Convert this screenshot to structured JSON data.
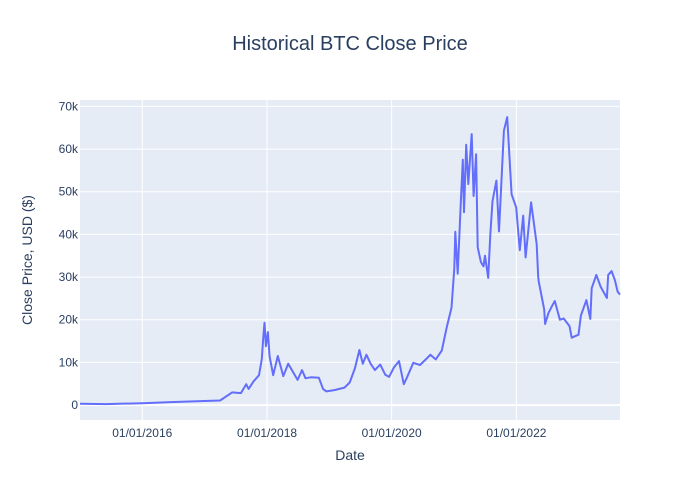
{
  "chart_data": {
    "type": "line",
    "title": "Historical BTC Close Price",
    "xlabel": "Date",
    "ylabel": "Close Price, USD ($)",
    "x_axis": {
      "type": "date",
      "range": [
        "2015-01-01",
        "2023-08-31"
      ],
      "ticks": [
        {
          "value": "2016-01-01",
          "label": "01/01/2016"
        },
        {
          "value": "2018-01-01",
          "label": "01/01/2018"
        },
        {
          "value": "2020-01-01",
          "label": "01/01/2020"
        },
        {
          "value": "2022-01-01",
          "label": "01/01/2022"
        }
      ]
    },
    "y_axis": {
      "range": [
        -3500,
        71500
      ],
      "ticks": [
        {
          "value": 0,
          "label": "0"
        },
        {
          "value": 10000,
          "label": "10k"
        },
        {
          "value": 20000,
          "label": "20k"
        },
        {
          "value": 30000,
          "label": "30k"
        },
        {
          "value": 40000,
          "label": "40k"
        },
        {
          "value": 50000,
          "label": "50k"
        },
        {
          "value": 60000,
          "label": "60k"
        },
        {
          "value": 70000,
          "label": "70k"
        }
      ]
    },
    "grid": true,
    "legend": false,
    "colors": {
      "line": "#636efa",
      "plot_background": "#e5ecf6",
      "grid": "#ffffff",
      "text": "#2a3f5f"
    },
    "series": [
      {
        "x": [
          "2015-01-01",
          "2015-06-01",
          "2016-01-01",
          "2016-06-15",
          "2016-12-31",
          "2017-04-01",
          "2017-06-10",
          "2017-08-01",
          "2017-09-01",
          "2017-09-15",
          "2017-10-15",
          "2017-11-15",
          "2017-12-01",
          "2017-12-10",
          "2017-12-17",
          "2017-12-25",
          "2018-01-06",
          "2018-01-16",
          "2018-02-06",
          "2018-03-05",
          "2018-04-06",
          "2018-05-05",
          "2018-06-29",
          "2018-07-25",
          "2018-08-14",
          "2018-09-15",
          "2018-11-01",
          "2018-11-25",
          "2018-12-15",
          "2019-01-30",
          "2019-03-31",
          "2019-04-30",
          "2019-05-31",
          "2019-06-26",
          "2019-07-16",
          "2019-08-06",
          "2019-09-01",
          "2019-09-25",
          "2019-10-26",
          "2019-11-25",
          "2019-12-17",
          "2020-01-14",
          "2020-02-13",
          "2020-03-12",
          "2020-03-30",
          "2020-05-07",
          "2020-06-15",
          "2020-07-27",
          "2020-08-15",
          "2020-09-15",
          "2020-10-21",
          "2020-11-20",
          "2020-12-17",
          "2021-01-02",
          "2021-01-08",
          "2021-01-22",
          "2021-02-08",
          "2021-02-21",
          "2021-02-28",
          "2021-03-13",
          "2021-03-25",
          "2021-04-14",
          "2021-04-25",
          "2021-05-10",
          "2021-05-19",
          "2021-06-07",
          "2021-06-22",
          "2021-07-01",
          "2021-07-20",
          "2021-08-01",
          "2021-08-14",
          "2021-09-06",
          "2021-09-21",
          "2021-10-20",
          "2021-11-08",
          "2021-11-26",
          "2021-12-04",
          "2021-12-31",
          "2022-01-21",
          "2022-02-10",
          "2022-02-24",
          "2022-03-28",
          "2022-04-30",
          "2022-05-09",
          "2022-05-12",
          "2022-06-13",
          "2022-06-18",
          "2022-07-08",
          "2022-07-30",
          "2022-08-14",
          "2022-09-13",
          "2022-10-05",
          "2022-11-08",
          "2022-11-21",
          "2022-12-31",
          "2023-01-14",
          "2023-02-15",
          "2023-03-10",
          "2023-03-18",
          "2023-04-14",
          "2023-05-10",
          "2023-06-15",
          "2023-06-23",
          "2023-07-13",
          "2023-08-01",
          "2023-08-17",
          "2023-08-31"
        ],
        "y": [
          315,
          225,
          430,
          700,
          960,
          1070,
          2970,
          2800,
          4900,
          3800,
          5600,
          7000,
          10800,
          16000,
          19300,
          13800,
          17100,
          11400,
          7000,
          11500,
          6800,
          9700,
          5900,
          8200,
          6300,
          6500,
          6400,
          3800,
          3200,
          3500,
          4100,
          5300,
          8600,
          12900,
          9700,
          11800,
          9600,
          8200,
          9500,
          7100,
          6600,
          8800,
          10300,
          4900,
          6400,
          9900,
          9400,
          11000,
          11800,
          10700,
          12800,
          18400,
          22800,
          32000,
          40600,
          30800,
          46400,
          57500,
          45200,
          61000,
          51800,
          63500,
          49000,
          58800,
          37000,
          33500,
          32500,
          35000,
          29800,
          39900,
          47800,
          52600,
          40700,
          64300,
          67500,
          54700,
          49400,
          46300,
          36300,
          44400,
          34600,
          47500,
          37700,
          30000,
          28900,
          22400,
          19000,
          21600,
          23300,
          24400,
          20000,
          20300,
          18500,
          15800,
          16500,
          21000,
          24600,
          20200,
          27400,
          30500,
          27700,
          25100,
          30500,
          31400,
          29300,
          26600,
          25900
        ]
      }
    ]
  }
}
